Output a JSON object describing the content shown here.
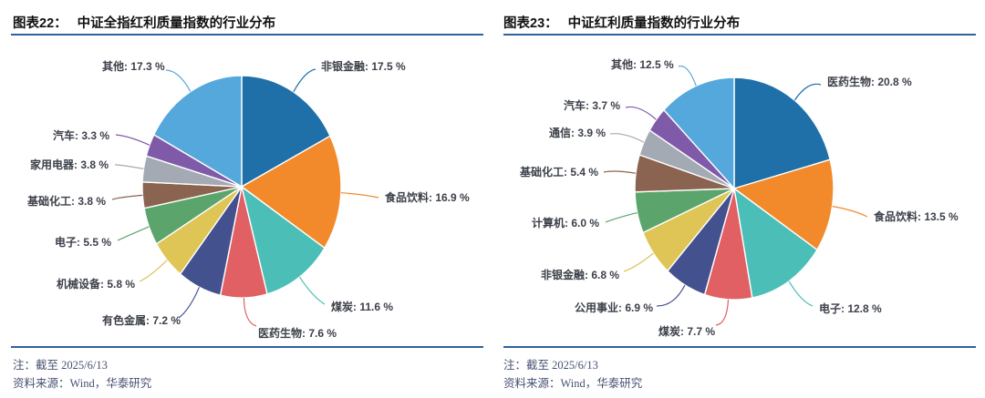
{
  "header": {
    "left": {
      "figure_label": "图表22：",
      "title": "中证全指红利质量指数的行业分布"
    },
    "right": {
      "figure_label": "图表23：",
      "title": "中证红利质量指数的行业分布"
    }
  },
  "footer": {
    "left": {
      "note": "注：截至 2025/6/13",
      "source": "资料来源：Wind，华泰研究"
    },
    "right": {
      "note": "注：截至 2025/6/13",
      "source": "资料来源：Wind，华泰研究"
    }
  },
  "colors": {
    "rule": "#31609F",
    "title_text": "#111111",
    "label_text": "#3C4049",
    "note_text": "#485272",
    "slice_stroke": "#FFFFFF"
  },
  "chart_data": [
    {
      "type": "pie",
      "figure_label": "图表22",
      "title": "中证全指红利质量指数的行业分布",
      "direction": "clockwise",
      "start_angle": "12-oclock",
      "unit": "%",
      "label_format": "{category}: {value} %",
      "categories": [
        "非银金融",
        "食品饮料",
        "煤炭",
        "医药生物",
        "有色金属",
        "机械设备",
        "电子",
        "基础化工",
        "家用电器",
        "汽车",
        "其他"
      ],
      "values": [
        17.5,
        16.9,
        11.6,
        7.6,
        7.2,
        5.8,
        5.5,
        3.8,
        3.8,
        3.3,
        17.3
      ],
      "colors": [
        "#1F6FA8",
        "#F28A2B",
        "#4BBEB7",
        "#E16064",
        "#43518E",
        "#DFC456",
        "#5BA46C",
        "#8A6450",
        "#A4AAB3",
        "#7F5AA8",
        "#55A8DC"
      ],
      "note": "注：截至 2025/6/13",
      "source": "资料来源：Wind，华泰研究"
    },
    {
      "type": "pie",
      "figure_label": "图表23",
      "title": "中证红利质量指数的行业分布",
      "direction": "clockwise",
      "start_angle": "12-oclock",
      "unit": "%",
      "label_format": "{category}: {value} %",
      "categories": [
        "医药生物",
        "食品饮料",
        "电子",
        "煤炭",
        "公用事业",
        "非银金融",
        "计算机",
        "基础化工",
        "通信",
        "汽车",
        "其他"
      ],
      "values": [
        20.8,
        13.5,
        12.8,
        7.7,
        6.9,
        6.8,
        6.0,
        5.4,
        3.9,
        3.7,
        12.5
      ],
      "colors": [
        "#1F6FA8",
        "#F28A2B",
        "#4BBEB7",
        "#E16064",
        "#43518E",
        "#DFC456",
        "#5BA46C",
        "#8A6450",
        "#A4AAB3",
        "#7F5AA8",
        "#55A8DC"
      ],
      "note": "注：截至 2025/6/13",
      "source": "资料来源：Wind，华泰研究"
    }
  ]
}
